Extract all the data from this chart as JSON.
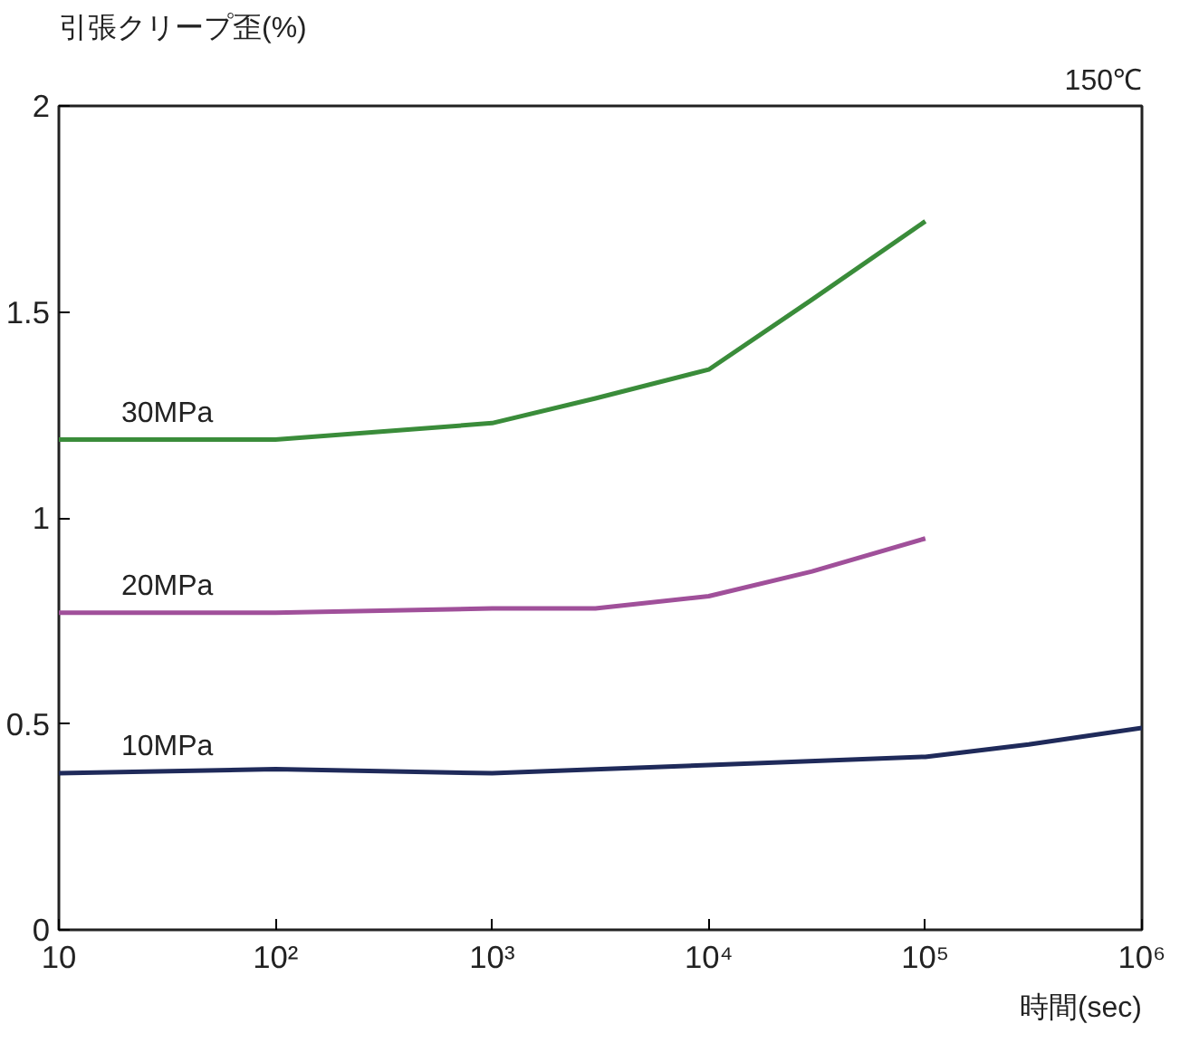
{
  "chart_data": {
    "type": "line",
    "ylabel": "引張クリープ歪(%)",
    "xlabel": "時間(sec)",
    "annotations": [
      "150℃"
    ],
    "log": "x",
    "xlim": [
      10,
      1000000
    ],
    "ylim": [
      0,
      2
    ],
    "xticks": [
      10,
      {
        "value": 100,
        "label": "10²"
      },
      {
        "value": 1000,
        "label": "10³"
      },
      {
        "value": 10000,
        "label": "10⁴"
      },
      {
        "value": 100000,
        "label": "10⁵"
      },
      {
        "value": 1000000,
        "label": "10⁶"
      }
    ],
    "yticks": [
      0,
      0.5,
      1,
      1.5,
      2
    ],
    "grid": false,
    "line_style": "solid",
    "marker": "none",
    "series": [
      {
        "name": "30MPa",
        "color": "#3a8c3a",
        "x": [
          10,
          100,
          1000,
          3000,
          10000,
          30000,
          100000
        ],
        "values": [
          1.19,
          1.19,
          1.23,
          1.29,
          1.36,
          1.53,
          1.72
        ]
      },
      {
        "name": "20MPa",
        "color": "#a0509a",
        "x": [
          10,
          100,
          1000,
          3000,
          10000,
          30000,
          100000
        ],
        "values": [
          0.77,
          0.77,
          0.78,
          0.78,
          0.81,
          0.87,
          0.95
        ]
      },
      {
        "name": "10MPa",
        "color": "#1f2a5a",
        "x": [
          10,
          100,
          1000,
          10000,
          100000,
          300000,
          1000000
        ],
        "values": [
          0.38,
          0.39,
          0.38,
          0.4,
          0.42,
          0.45,
          0.49
        ]
      }
    ]
  }
}
